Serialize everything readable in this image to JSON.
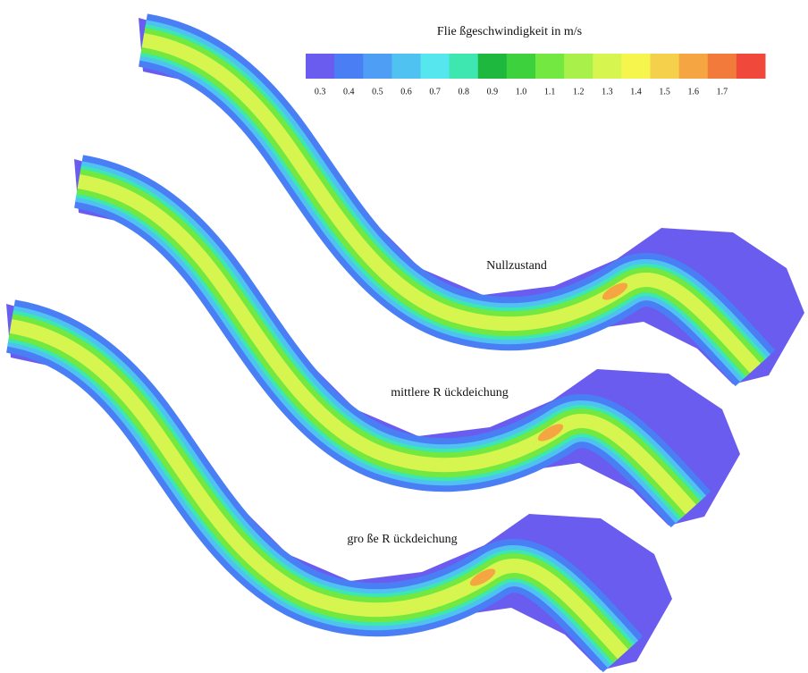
{
  "legend": {
    "title": "Flie ßgeschwindigkeit in m/s",
    "labels": [
      "0.3",
      "0.4",
      "0.5",
      "0.6",
      "0.7",
      "0.8",
      "0.9",
      "1.0",
      "1.1",
      "1.2",
      "1.3",
      "1.4",
      "1.5",
      "1.6",
      "1.7"
    ],
    "colors": [
      "#6b5cf0",
      "#4a7ef5",
      "#4f9ef5",
      "#4fc2f2",
      "#55e6ee",
      "#3ee6b0",
      "#1fb83e",
      "#3dd13e",
      "#72e840",
      "#a9f04a",
      "#d6f54e",
      "#f5f54e",
      "#f5d04a",
      "#f5a642",
      "#f27a3a",
      "#f0483a"
    ]
  },
  "panels": [
    {
      "label": "Nullzustand"
    },
    {
      "label": "mittlere R ückdeichung"
    },
    {
      "label": "gro ße R ückdeichung"
    }
  ]
}
